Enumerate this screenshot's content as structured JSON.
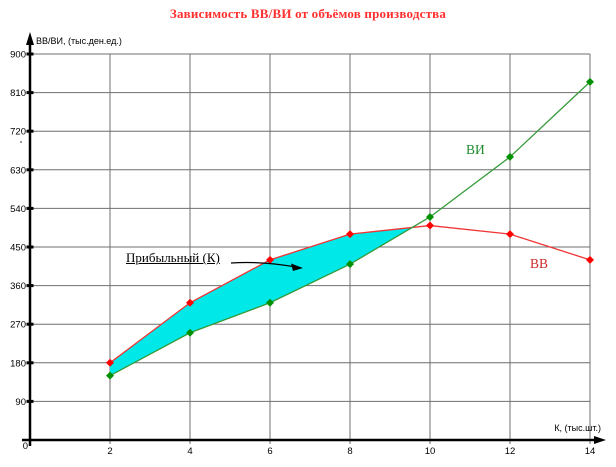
{
  "title": {
    "text": "Зависимость ВВ/ВИ от объёмов производства",
    "color": "#ff2f2f"
  },
  "chart_data": {
    "type": "line",
    "title": "Зависимость ВВ/ВИ от объёмов производства",
    "x": [
      2,
      4,
      6,
      8,
      10,
      12,
      14
    ],
    "series": [
      {
        "name": "ВВ",
        "values": [
          180,
          320,
          420,
          480,
          500,
          480,
          420
        ],
        "line_color": "#f03434",
        "marker_color": "#ff0000",
        "label_color": "#cc2a2a"
      },
      {
        "name": "ВИ",
        "values": [
          150,
          250,
          320,
          410,
          520,
          660,
          835
        ],
        "line_color": "#359a3a",
        "marker_color": "#009000",
        "label_color": "#1e8b2d"
      }
    ],
    "xlabel": "К, (тыс.шт.)",
    "ylabel": "ВВ/ВИ, (тыс.ден.ед.)",
    "x_ticks": [
      0,
      2,
      4,
      6,
      8,
      10,
      12,
      14
    ],
    "y_ticks": [
      0,
      90,
      180,
      270,
      360,
      450,
      540,
      630,
      720,
      810,
      900
    ],
    "xlim": [
      0,
      14.4
    ],
    "ylim": [
      0,
      900
    ],
    "grid": true,
    "grid_color": "#6f6f6f",
    "legend_position": "inline-labels",
    "fill_region": {
      "label": "Прибыльный (К)",
      "color": "#00e8e8",
      "between": [
        "ВВ",
        "ВИ"
      ],
      "from_x": 2,
      "to": "intersection"
    }
  }
}
